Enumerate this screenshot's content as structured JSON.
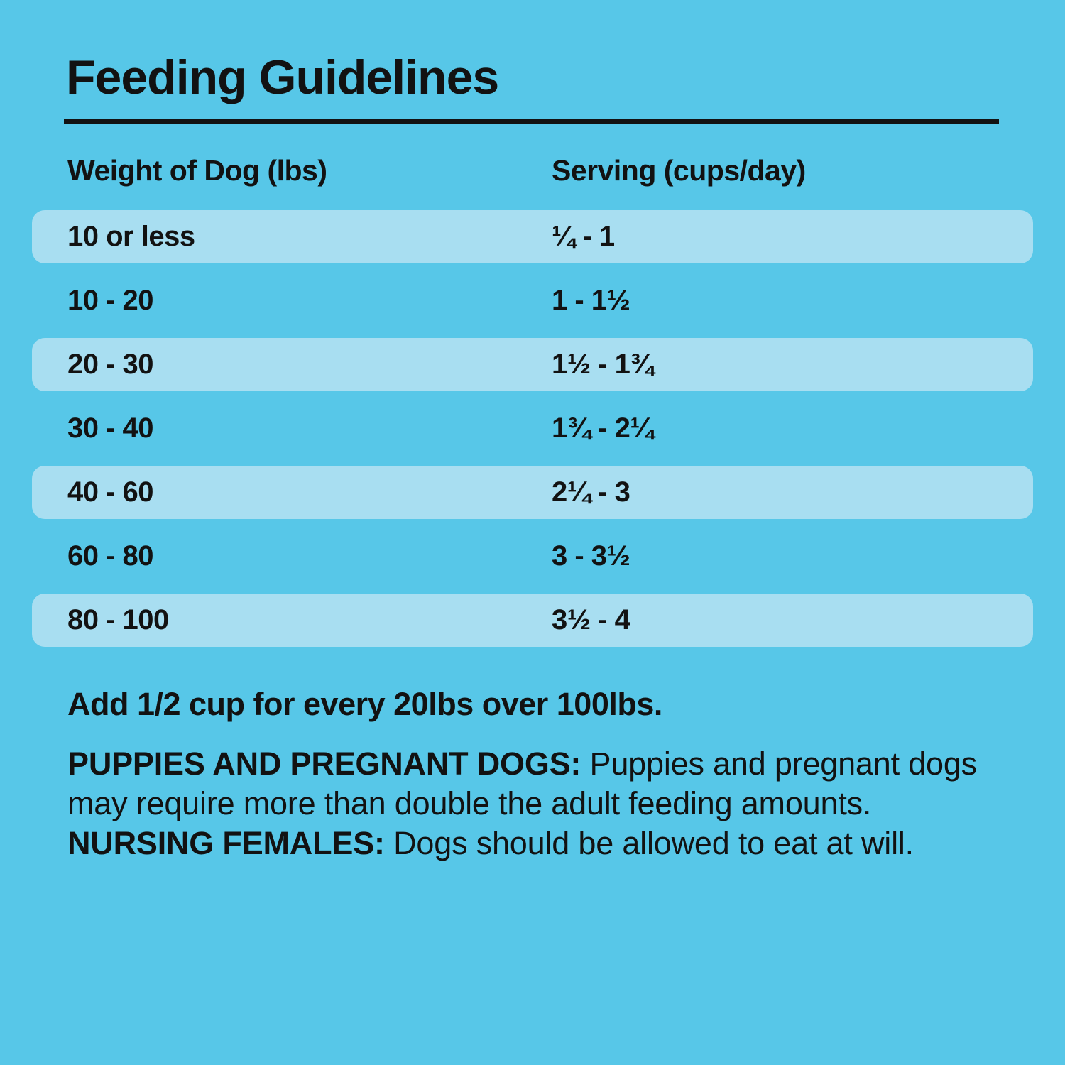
{
  "page": {
    "background_color": "#57C7E8",
    "row_highlight_color": "#A8DEF1",
    "text_color": "#121212"
  },
  "title": "Feeding Guidelines",
  "table": {
    "columns": [
      "Weight of Dog (lbs)",
      "Serving (cups/day)"
    ],
    "rows": [
      {
        "weight": "10 or less",
        "serving": "¼ - 1"
      },
      {
        "weight": "10 - 20",
        "serving": "1 - 1½"
      },
      {
        "weight": "20 - 30",
        "serving": "1½ - 1¾"
      },
      {
        "weight": "30 - 40",
        "serving": "1¾ - 2¼"
      },
      {
        "weight": "40 - 60",
        "serving": "2¼ - 3"
      },
      {
        "weight": "60 - 80",
        "serving": "3 - 3½"
      },
      {
        "weight": "80 - 100",
        "serving": "3½ - 4"
      }
    ]
  },
  "notes": {
    "extra": "Add 1/2 cup for every 20lbs over 100lbs.",
    "line1_bold": "PUPPIES AND PREGNANT DOGS:",
    "line1_rest": " Puppies and pregnant",
    "line2": "dogs may require more than double the adult feeding",
    "line3_pre": "amounts. ",
    "line3_bold": "NURSING FEMALES:",
    "line3_rest": " Dogs should be allowed",
    "line4": "to eat at will."
  }
}
